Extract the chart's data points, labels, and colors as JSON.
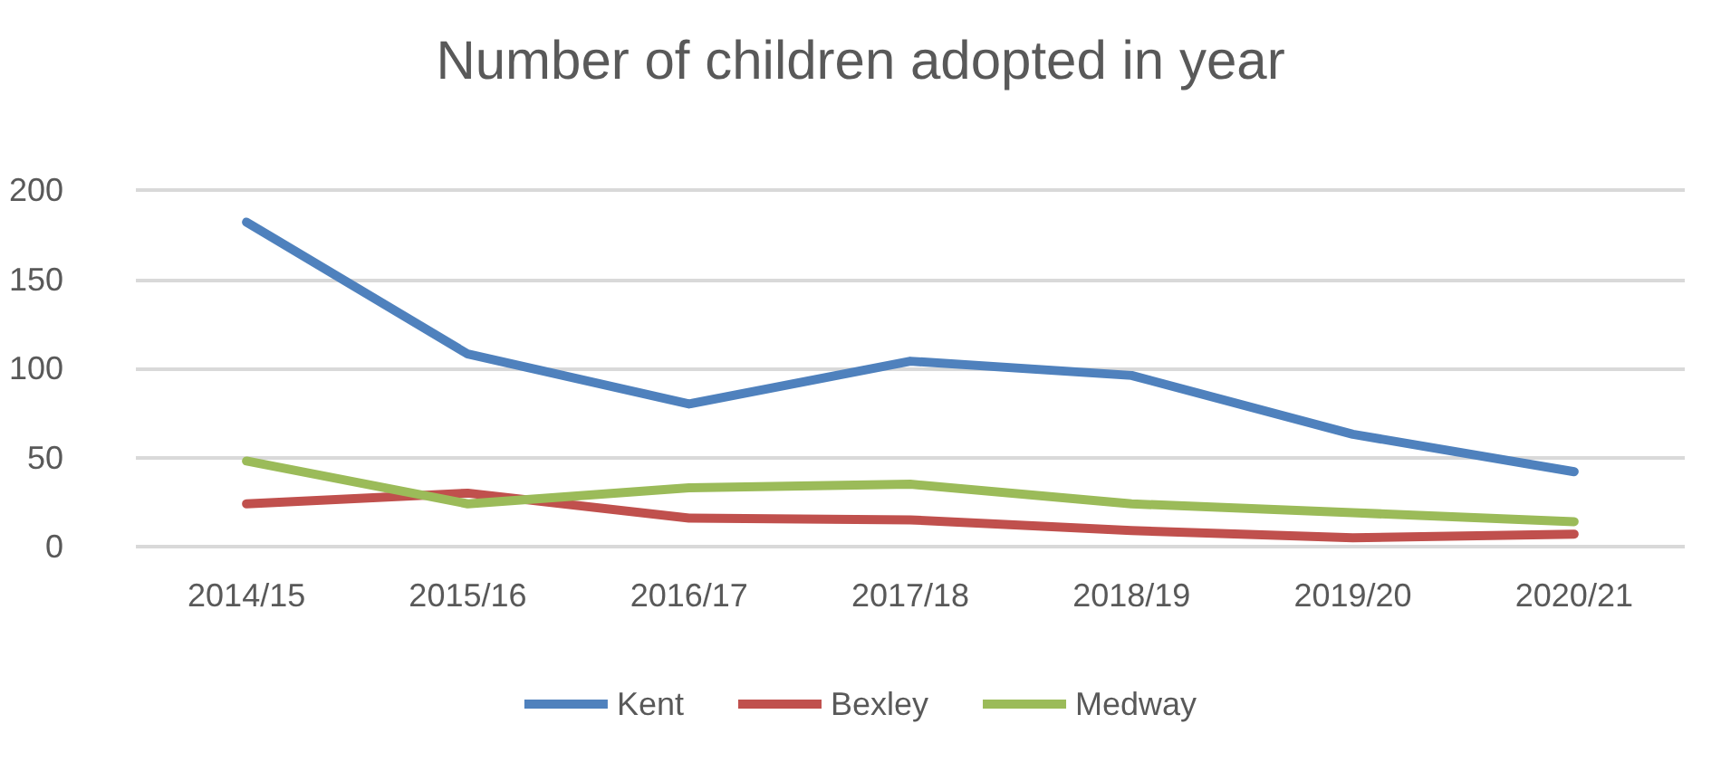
{
  "chart_data": {
    "type": "line",
    "title": "Number of children adopted in year",
    "categories": [
      "2014/15",
      "2015/16",
      "2016/17",
      "2017/18",
      "2018/19",
      "2019/20",
      "2020/21"
    ],
    "series": [
      {
        "name": "Kent",
        "color": "#4f81bd",
        "values": [
          182,
          108,
          80,
          104,
          96,
          63,
          42
        ]
      },
      {
        "name": "Bexley",
        "color": "#c0504d",
        "values": [
          24,
          30,
          16,
          15,
          9,
          5,
          7
        ]
      },
      {
        "name": "Medway",
        "color": "#9bbb59",
        "values": [
          48,
          24,
          33,
          35,
          24,
          19,
          14
        ]
      }
    ],
    "ylim": [
      0,
      200
    ],
    "yticks": [
      0,
      50,
      100,
      150,
      200
    ],
    "grid": "y",
    "legend": "bottom",
    "marker": "none",
    "line_style": "solid"
  }
}
